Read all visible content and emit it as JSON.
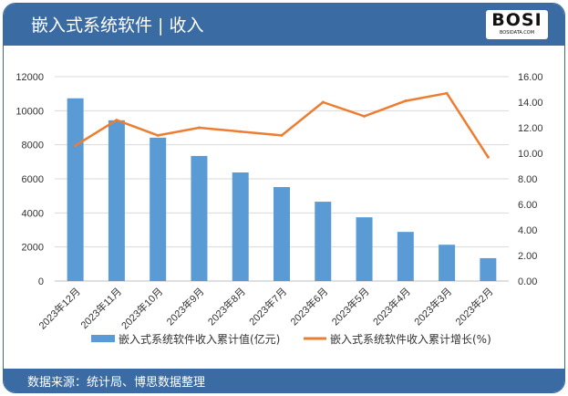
{
  "header": {
    "title": "嵌入式系统软件 | 收入",
    "logo_text": "BOSI",
    "logo_sub": "BOSIDATA.COM"
  },
  "footer": {
    "source": "数据来源：统计局、博思数据整理"
  },
  "chart_data": {
    "type": "bar+line",
    "categories": [
      "2023年12月",
      "2023年11月",
      "2023年10月",
      "2023年9月",
      "2023年8月",
      "2023年7月",
      "2023年6月",
      "2023年5月",
      "2023年4月",
      "2023年3月",
      "2023年2月"
    ],
    "series": [
      {
        "name": "嵌入式系统软件收入累计值(亿元)",
        "type": "bar",
        "axis": "left",
        "color": "#5b9bd5",
        "values": [
          10729,
          9439,
          8418,
          7344,
          6376,
          5517,
          4657,
          3743,
          2884,
          2131,
          1343
        ]
      },
      {
        "name": "嵌入式系统软件收入累计增长(%)",
        "type": "line",
        "axis": "right",
        "color": "#ed7d31",
        "values": [
          10.6,
          12.6,
          11.4,
          12.0,
          11.7,
          11.4,
          14.0,
          12.9,
          14.1,
          14.7,
          9.7
        ]
      }
    ],
    "y_left": {
      "range": [
        0,
        12000
      ],
      "ticks": [
        "0",
        "2000",
        "4000",
        "6000",
        "8000",
        "10000",
        "12000"
      ]
    },
    "y_right": {
      "range": [
        0,
        16
      ],
      "ticks": [
        "0.00",
        "2.00",
        "4.00",
        "6.00",
        "8.00",
        "10.00",
        "12.00",
        "14.00",
        "16.00"
      ]
    },
    "grid": true,
    "legend_position": "bottom"
  }
}
